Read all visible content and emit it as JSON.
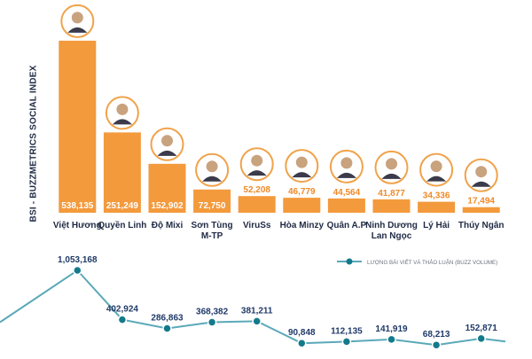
{
  "chart_data": [
    {
      "type": "bar",
      "title": "BSI - BUZZMETRICS SOCIAL INDEX",
      "categories": [
        "Việt Hương",
        "Quyền Linh",
        "Độ Mixi",
        "Sơn Tùng M-TP",
        "ViruSs",
        "Hòa Minzy",
        "Quân A.P",
        "Ninh Dương Lan Ngọc",
        "Lý Hải",
        "Thúy Ngân"
      ],
      "category_lines": [
        [
          "Việt Hương"
        ],
        [
          "Quyền Linh"
        ],
        [
          "Độ Mixi"
        ],
        [
          "Sơn Tùng",
          "M-TP"
        ],
        [
          "ViruSs"
        ],
        [
          "Hòa Minzy"
        ],
        [
          "Quân A.P"
        ],
        [
          "Ninh Dương",
          "Lan Ngọc"
        ],
        [
          "Lý Hải"
        ],
        [
          "Thúy Ngân"
        ]
      ],
      "values": [
        538135,
        251249,
        152902,
        72750,
        52208,
        46779,
        44564,
        41877,
        34336,
        17494
      ],
      "value_labels": [
        "538,135",
        "251,249",
        "152,902",
        "72,750",
        "52,208",
        "46,779",
        "44,564",
        "41,877",
        "34,336",
        "17,494"
      ],
      "ylim": [
        0,
        560000
      ],
      "bar_color": "#f39a3d",
      "label_inside_color": "#ffffff",
      "label_outside_color": "#ef8a2a"
    },
    {
      "type": "line",
      "series": [
        {
          "name": "LƯỢNG BÀI VIẾT VÀ THẢO LUẬN (BUZZ VOLUME)",
          "values": [
            1053168,
            402924,
            286863,
            368382,
            381211,
            90848,
            112135,
            141919,
            68213,
            152871
          ],
          "value_labels": [
            "1,053,168",
            "402,924",
            "286,863",
            "368,382",
            "381,211",
            "90,848",
            "112,135",
            "141,919",
            "68,213",
            "152,871"
          ]
        }
      ],
      "categories": [
        "Việt Hương",
        "Quyền Linh",
        "Độ Mixi",
        "Sơn Tùng M-TP",
        "ViruSs",
        "Hòa Minzy",
        "Quân A.P",
        "Ninh Dương Lan Ngọc",
        "Lý Hải",
        "Thúy Ngân"
      ],
      "ylim": [
        0,
        1100000
      ],
      "legend_position": "top-right",
      "line_color": "#5aa9b8",
      "marker_color": "#137a8c",
      "label_color": "#1f3a68"
    }
  ],
  "colors": {
    "avatar_ring": "#f0a24a",
    "category_text": "#1f2a44",
    "title_text": "#1f2a44"
  }
}
